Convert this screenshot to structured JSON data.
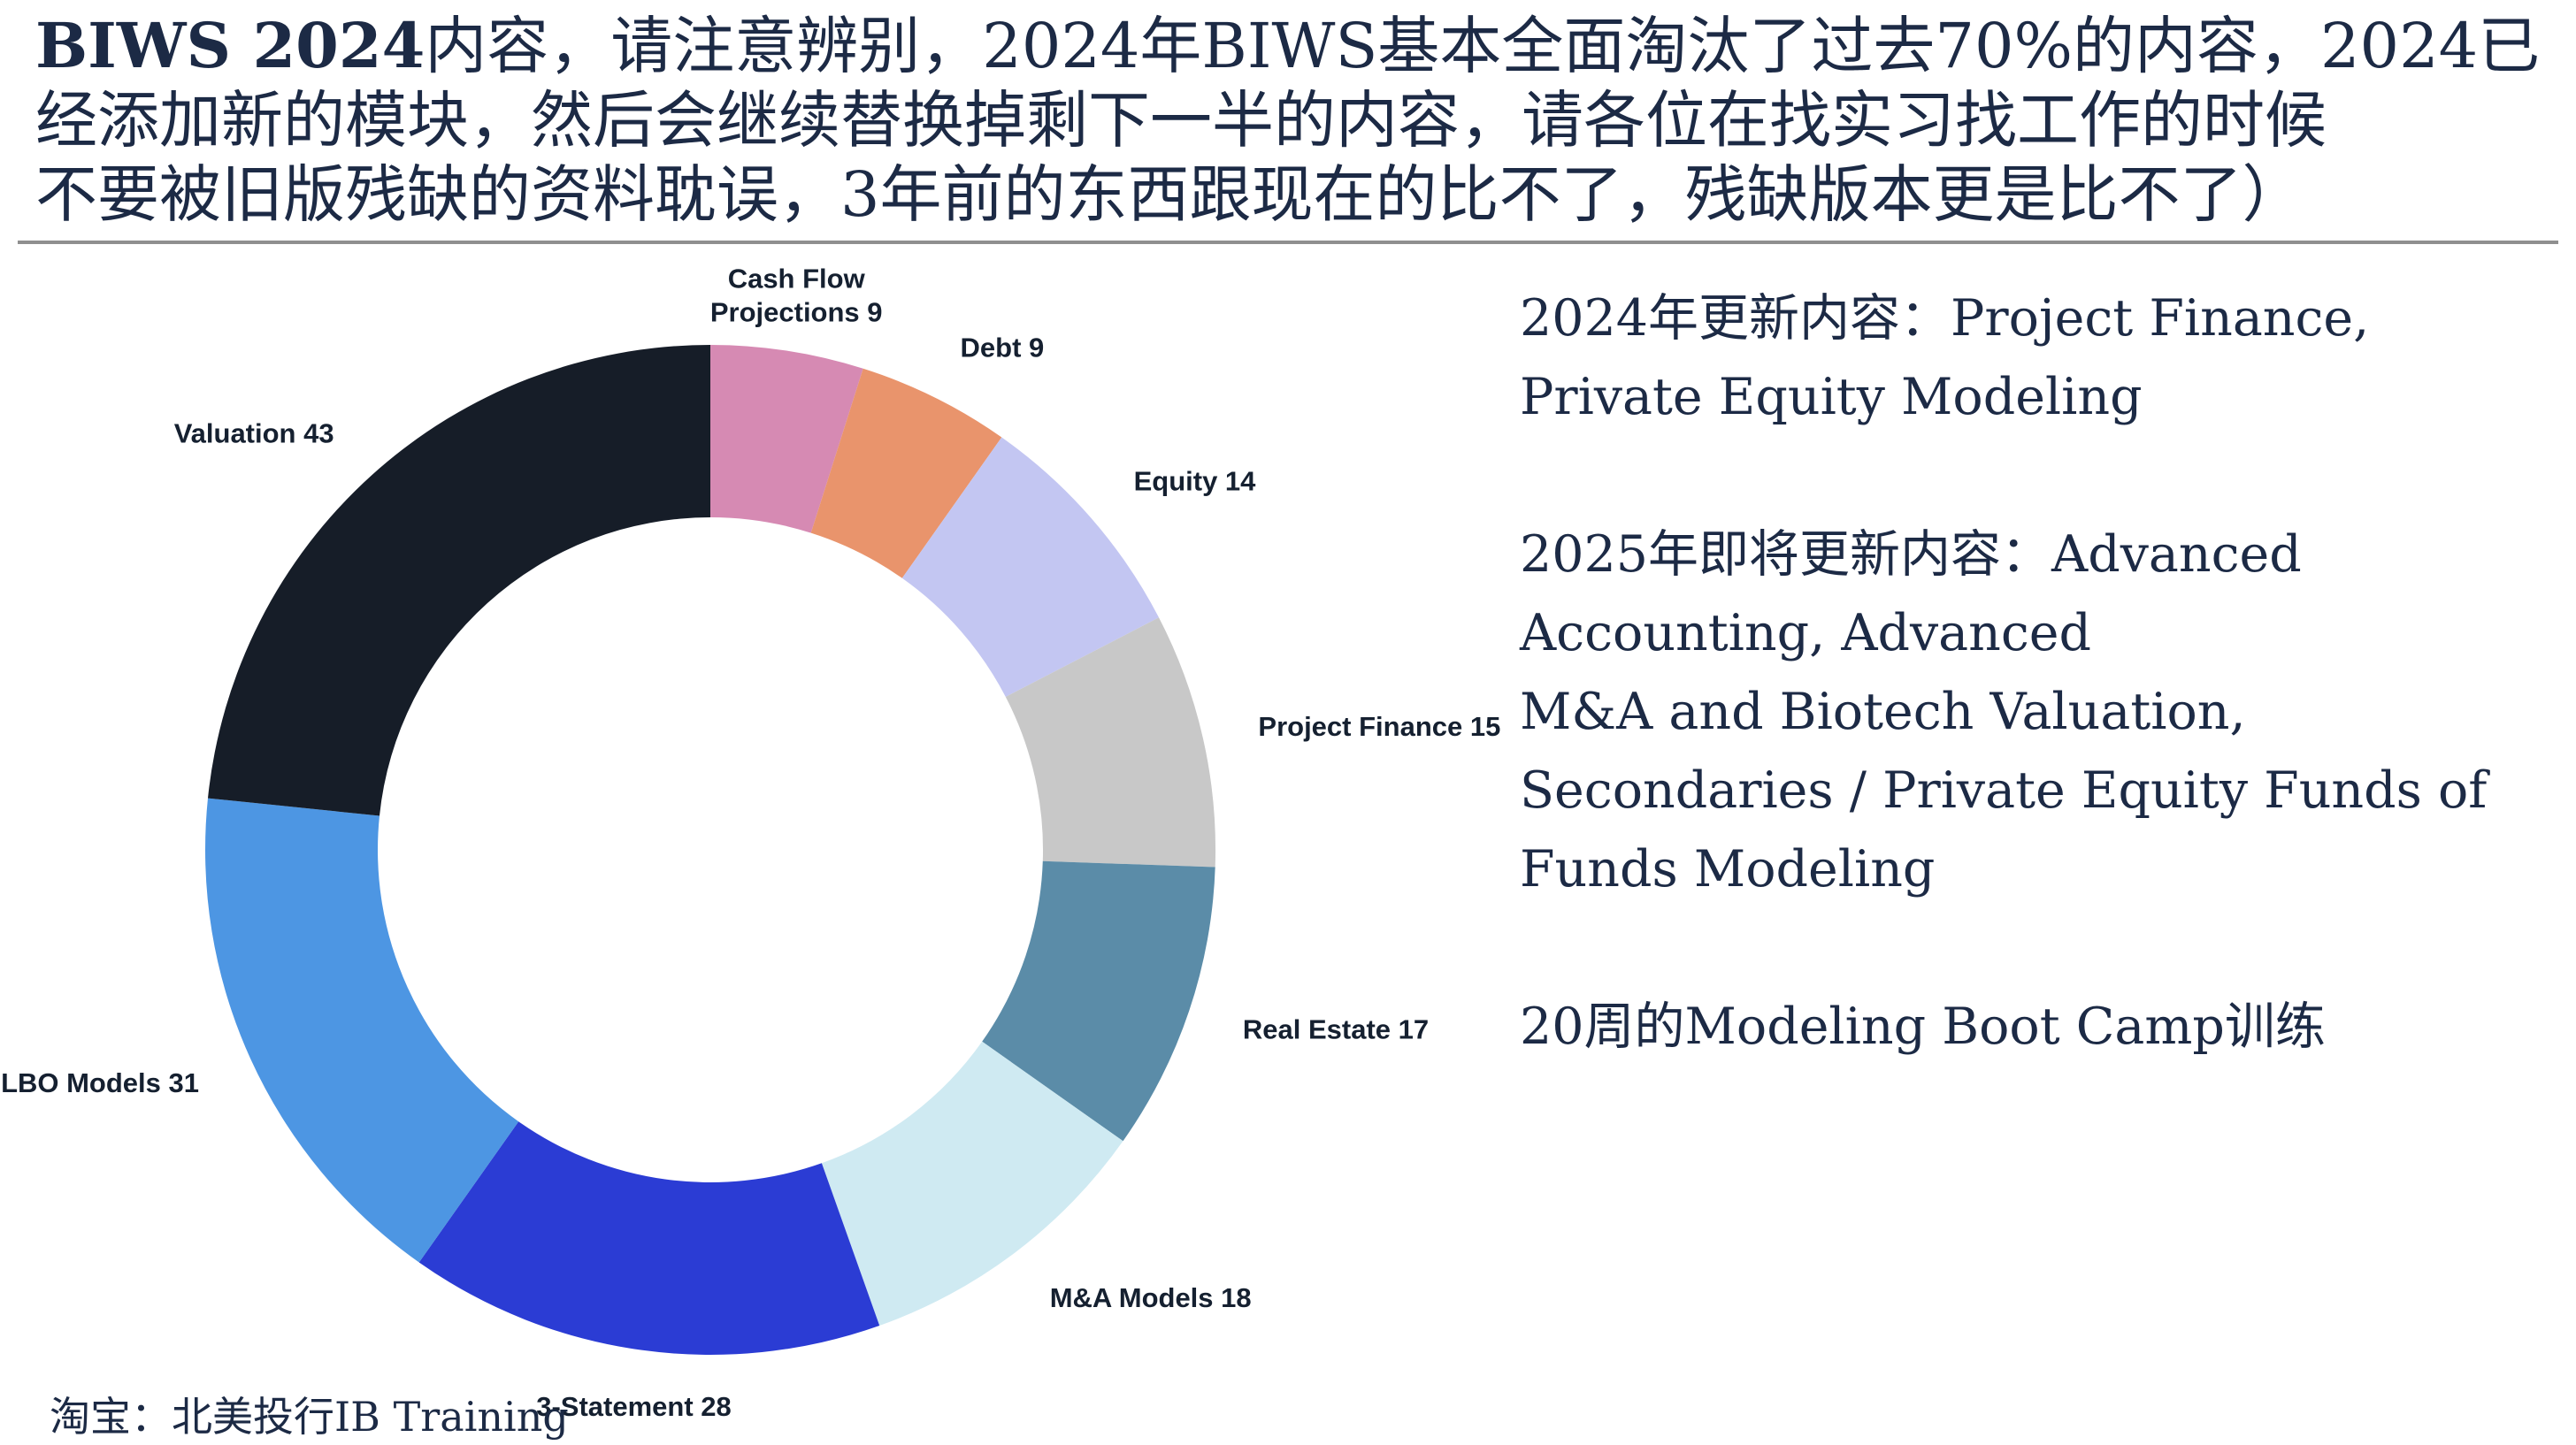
{
  "header": {
    "bold_prefix": "BIWS 2024",
    "line1_rest": "内容，请注意辨别，2024年BIWS基本全面淘汰了过去70%的内容，2024已",
    "line2": "经添加新的模块，然后会继续替换掉剩下一半的内容，请各位在找实习找工作的时候",
    "line3": "不要被旧版残缺的资料耽误，3年前的东西跟现在的比不了，残缺版本更是比不了）"
  },
  "chart_data": {
    "type": "pie",
    "subtype": "donut",
    "title": "",
    "total": 184,
    "start_angle_deg": 0,
    "direction": "clockwise",
    "legend_position": "none",
    "slices": [
      {
        "name": "Cash Flow Projections",
        "value": 9,
        "color": "#d68ab3",
        "label_lines": [
          "Cash Flow",
          "Projections 9"
        ]
      },
      {
        "name": "Debt",
        "value": 9,
        "color": "#e9946c",
        "label_lines": [
          "Debt 9"
        ]
      },
      {
        "name": "Equity",
        "value": 14,
        "color": "#c3c6f2",
        "label_lines": [
          "Equity 14"
        ]
      },
      {
        "name": "Project Finance",
        "value": 15,
        "color": "#c8c8c8",
        "label_lines": [
          "Project Finance 15"
        ]
      },
      {
        "name": "Real Estate",
        "value": 17,
        "color": "#5b8ca8",
        "label_lines": [
          "Real Estate 17"
        ]
      },
      {
        "name": "M&A Models",
        "value": 18,
        "color": "#cfeaf2",
        "label_lines": [
          "M&A Models 18"
        ]
      },
      {
        "name": "3-Statement",
        "value": 28,
        "color": "#2b3cd4",
        "label_lines": [
          "3-Statement 28"
        ]
      },
      {
        "name": "LBO Models",
        "value": 31,
        "color": "#4d96e3",
        "label_lines": [
          "LBO Models 31"
        ]
      },
      {
        "name": "Valuation",
        "value": 43,
        "color": "#161d28",
        "label_lines": [
          "Valuation 43"
        ]
      }
    ]
  },
  "notes": {
    "block1_lines": [
      "2024年更新内容：Project Finance,",
      "Private Equity Modeling"
    ],
    "block2_lines": [
      "2025年即将更新内容：Advanced",
      "Accounting, Advanced",
      "M&A and Biotech Valuation,",
      "Secondaries / Private Equity Funds of",
      "Funds Modeling"
    ],
    "block3_lines": [
      "20周的Modeling Boot Camp训练"
    ]
  },
  "footer": {
    "text": "淘宝：北美投行IB Training"
  },
  "colors": {
    "text_navy": "#1c2a45",
    "divider_gray": "#8f8f8f"
  }
}
